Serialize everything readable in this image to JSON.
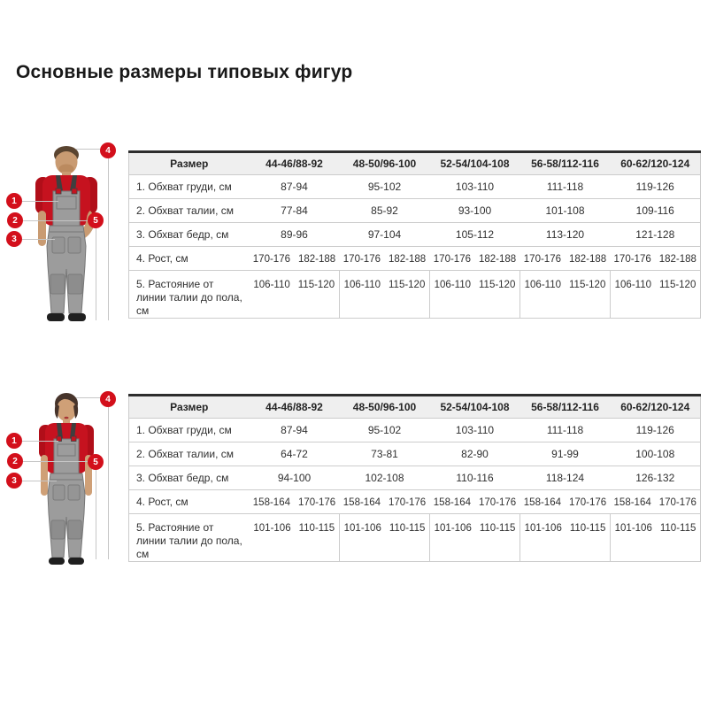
{
  "page": {
    "title": "Основные размеры типовых фигур"
  },
  "colors": {
    "accent_red": "#d30f1b",
    "shirt_red": "#c6121f",
    "overall_gray": "#9c9c9c",
    "table_top_border": "#2e2e2e",
    "header_bg": "#efefef",
    "grid_line": "#cccccc"
  },
  "size_tables": [
    {
      "name": "men",
      "figure": "male-worker",
      "columns": [
        "Размер",
        "44-46/88-92",
        "48-50/96-100",
        "52-54/104-108",
        "56-58/112-116",
        "60-62/120-124"
      ],
      "rows": [
        {
          "label": "1. Обхват груди, см",
          "cells": [
            [
              "87-94"
            ],
            [
              "95-102"
            ],
            [
              "103-110"
            ],
            [
              "111-118"
            ],
            [
              "119-126"
            ]
          ]
        },
        {
          "label": "2. Обхват талии, см",
          "cells": [
            [
              "77-84"
            ],
            [
              "85-92"
            ],
            [
              "93-100"
            ],
            [
              "101-108"
            ],
            [
              "109-116"
            ]
          ]
        },
        {
          "label": "3. Обхват бедр, см",
          "cells": [
            [
              "89-96"
            ],
            [
              "97-104"
            ],
            [
              "105-112"
            ],
            [
              "113-120"
            ],
            [
              "121-128"
            ]
          ]
        },
        {
          "label": "4. Рост, см",
          "cells": [
            [
              "170-176",
              "182-188"
            ],
            [
              "170-176",
              "182-188"
            ],
            [
              "170-176",
              "182-188"
            ],
            [
              "170-176",
              "182-188"
            ],
            [
              "170-176",
              "182-188"
            ]
          ]
        },
        {
          "label": "5. Растояние от линии талии до пола, см",
          "divided": true,
          "cells": [
            [
              "106-110",
              "115-120"
            ],
            [
              "106-110",
              "115-120"
            ],
            [
              "106-110",
              "115-120"
            ],
            [
              "106-110",
              "115-120"
            ],
            [
              "106-110",
              "115-120"
            ]
          ]
        }
      ],
      "markers": [
        "1",
        "2",
        "3",
        "4",
        "5"
      ]
    },
    {
      "name": "women",
      "figure": "female-worker",
      "columns": [
        "Размер",
        "44-46/88-92",
        "48-50/96-100",
        "52-54/104-108",
        "56-58/112-116",
        "60-62/120-124"
      ],
      "rows": [
        {
          "label": "1. Обхват груди, см",
          "cells": [
            [
              "87-94"
            ],
            [
              "95-102"
            ],
            [
              "103-110"
            ],
            [
              "111-118"
            ],
            [
              "119-126"
            ]
          ]
        },
        {
          "label": "2. Обхват талии, см",
          "cells": [
            [
              "64-72"
            ],
            [
              "73-81"
            ],
            [
              "82-90"
            ],
            [
              "91-99"
            ],
            [
              "100-108"
            ]
          ]
        },
        {
          "label": "3. Обхват бедр, см",
          "cells": [
            [
              "94-100"
            ],
            [
              "102-108"
            ],
            [
              "110-116"
            ],
            [
              "118-124"
            ],
            [
              "126-132"
            ]
          ]
        },
        {
          "label": "4. Рост, см",
          "cells": [
            [
              "158-164",
              "170-176"
            ],
            [
              "158-164",
              "170-176"
            ],
            [
              "158-164",
              "170-176"
            ],
            [
              "158-164",
              "170-176"
            ],
            [
              "158-164",
              "170-176"
            ]
          ]
        },
        {
          "label": "5. Растояние от линии талии до пола, см",
          "divided": true,
          "cells": [
            [
              "101-106",
              "110-115"
            ],
            [
              "101-106",
              "110-115"
            ],
            [
              "101-106",
              "110-115"
            ],
            [
              "101-106",
              "110-115"
            ],
            [
              "101-106",
              "110-115"
            ]
          ]
        }
      ],
      "markers": [
        "1",
        "2",
        "3",
        "4",
        "5"
      ]
    }
  ]
}
